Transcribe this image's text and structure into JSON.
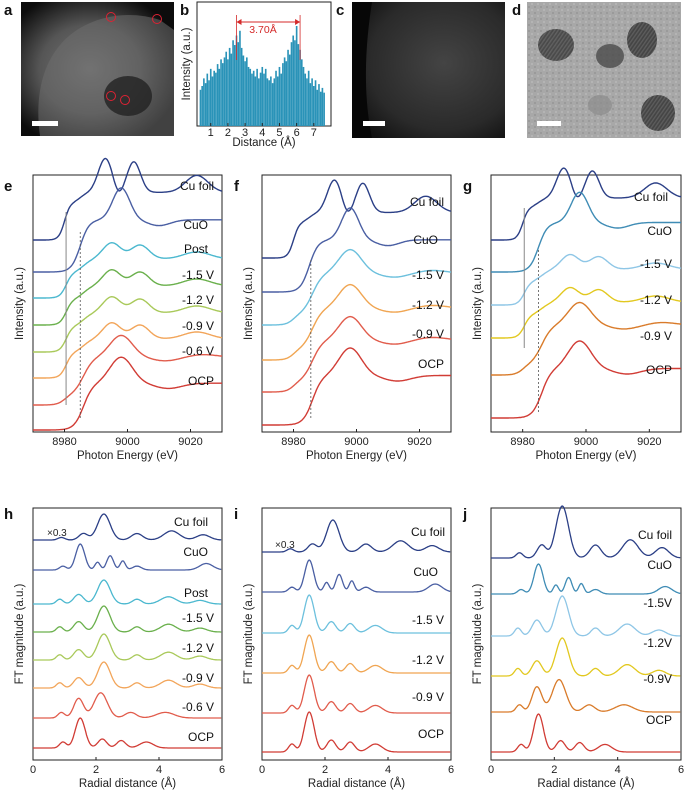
{
  "panels": {
    "a": {
      "letter": "a"
    },
    "b": {
      "letter": "b"
    },
    "c": {
      "letter": "c"
    },
    "d": {
      "letter": "d"
    },
    "e": {
      "letter": "e"
    },
    "f": {
      "letter": "f"
    },
    "g": {
      "letter": "g"
    },
    "h": {
      "letter": "h"
    },
    "i": {
      "letter": "i"
    },
    "j": {
      "letter": "j"
    }
  },
  "annotations": {
    "b_spacing": "3.70Å",
    "h_scale": "×0.3",
    "i_scale": "×0.3"
  },
  "colors": {
    "Cu foil": "#2b3f86",
    "CuO": "#4a5fa3",
    "Post": "#4bb8cf",
    "-1.5 V": "#6cc0dd",
    "-1.2 V": "#f0a552",
    "-0.9 V": "#f0a552",
    "-0.6 V": "#e15c4c",
    "OCP": "#d13c35",
    "h_-1.5 V": "#6ab04c",
    "h_-1.2 V": "#a9c95a",
    "h_-0.9 V": "#f2a55a",
    "g_-1.5 V": "#8ec6e6",
    "g_-1.2 V": "#e2c81f",
    "g_-0.9 V": "#d97b2a",
    "bar": "#2a93b8",
    "arrow": "#d42a2a"
  },
  "chart_data": [
    {
      "panel": "b",
      "type": "bar",
      "title": "",
      "xlabel": "Distance (Å)",
      "ylabel": "Intensity (a.u.)",
      "xlim": [
        0.2,
        8.0
      ],
      "xticks": [
        1,
        2,
        3,
        4,
        5,
        6,
        7
      ],
      "x": [
        0.4,
        0.5,
        0.6,
        0.7,
        0.8,
        0.9,
        1.0,
        1.1,
        1.2,
        1.3,
        1.4,
        1.5,
        1.6,
        1.7,
        1.8,
        1.9,
        2.0,
        2.1,
        2.2,
        2.3,
        2.4,
        2.5,
        2.6,
        2.7,
        2.8,
        2.9,
        3.0,
        3.1,
        3.2,
        3.3,
        3.4,
        3.5,
        3.6,
        3.7,
        3.8,
        3.9,
        4.0,
        4.1,
        4.2,
        4.3,
        4.4,
        4.5,
        4.6,
        4.7,
        4.8,
        4.9,
        5.0,
        5.1,
        5.2,
        5.3,
        5.4,
        5.5,
        5.6,
        5.7,
        5.8,
        5.9,
        6.0,
        6.1,
        6.2,
        6.3,
        6.4,
        6.5,
        6.6,
        6.7,
        6.8,
        6.9,
        7.0,
        7.1,
        7.2,
        7.3,
        7.4,
        7.5,
        7.6
      ],
      "values": [
        0.38,
        0.42,
        0.5,
        0.45,
        0.55,
        0.48,
        0.6,
        0.52,
        0.58,
        0.56,
        0.65,
        0.6,
        0.7,
        0.66,
        0.72,
        0.78,
        0.7,
        0.82,
        0.76,
        0.9,
        0.85,
        0.95,
        0.88,
        1.0,
        0.82,
        0.74,
        0.68,
        0.72,
        0.62,
        0.6,
        0.55,
        0.58,
        0.52,
        0.6,
        0.5,
        0.56,
        0.62,
        0.55,
        0.6,
        0.5,
        0.48,
        0.52,
        0.45,
        0.5,
        0.58,
        0.52,
        0.62,
        0.55,
        0.66,
        0.72,
        0.68,
        0.8,
        0.75,
        0.88,
        0.95,
        0.9,
        1.05,
        0.86,
        0.8,
        0.7,
        0.62,
        0.55,
        0.5,
        0.58,
        0.45,
        0.5,
        0.42,
        0.48,
        0.38,
        0.44,
        0.36,
        0.4,
        0.35
      ]
    },
    {
      "panel": "e",
      "type": "line",
      "xlabel": "Photon Energy (eV)",
      "ylabel": "Intensity (a.u.)",
      "xlim": [
        8970,
        9030
      ],
      "xticks": [
        8980,
        9000,
        9020
      ],
      "series": [
        {
          "name": "Cu foil",
          "label": "Cu foil"
        },
        {
          "name": "CuO",
          "label": "CuO"
        },
        {
          "name": "Post",
          "label": "Post"
        },
        {
          "name": "-1.5 V",
          "label": "-1.5 V"
        },
        {
          "name": "-1.2 V",
          "label": "-1.2 V"
        },
        {
          "name": "-0.9 V",
          "label": "-0.9 V"
        },
        {
          "name": "-0.6 V",
          "label": "-0.6 V"
        },
        {
          "name": "OCP",
          "label": "OCP"
        }
      ]
    },
    {
      "panel": "f",
      "type": "line",
      "xlabel": "Photon Energy (eV)",
      "ylabel": "Intensity (a.u.)",
      "xlim": [
        8970,
        9030
      ],
      "xticks": [
        8980,
        9000,
        9020
      ],
      "series": [
        {
          "name": "Cu foil",
          "label": "Cu foil"
        },
        {
          "name": "CuO",
          "label": "CuO"
        },
        {
          "name": "-1.5 V",
          "label": "-1.5 V"
        },
        {
          "name": "-1.2 V",
          "label": "-1.2 V"
        },
        {
          "name": "-0.9 V",
          "label": "-0.9 V"
        },
        {
          "name": "OCP",
          "label": "OCP"
        }
      ]
    },
    {
      "panel": "g",
      "type": "line",
      "xlabel": "Photon Energy (eV)",
      "ylabel": "Intensity (a.u.)",
      "xlim": [
        8970,
        9030
      ],
      "xticks": [
        8980,
        9000,
        9020
      ],
      "series": [
        {
          "name": "Cu foil",
          "label": "Cu foil"
        },
        {
          "name": "CuO",
          "label": "CuO"
        },
        {
          "name": "-1.5 V",
          "label": "-1.5 V"
        },
        {
          "name": "-1.2 V",
          "label": "-1.2 V"
        },
        {
          "name": "-0.9 V",
          "label": "-0.9 V"
        },
        {
          "name": "OCP",
          "label": "OCP"
        }
      ]
    },
    {
      "panel": "h",
      "type": "line",
      "xlabel": "Radial distance (Å)",
      "ylabel": "FT magnitude (a.u.)",
      "xlim": [
        0,
        6
      ],
      "xticks": [
        0,
        2,
        4,
        6
      ],
      "series": [
        {
          "name": "Cu foil",
          "label": "Cu foil"
        },
        {
          "name": "CuO",
          "label": "CuO"
        },
        {
          "name": "Post",
          "label": "Post"
        },
        {
          "name": "-1.5 V",
          "label": "-1.5 V"
        },
        {
          "name": "-1.2 V",
          "label": "-1.2 V"
        },
        {
          "name": "-0.9 V",
          "label": "-0.9 V"
        },
        {
          "name": "-0.6 V",
          "label": "-0.6 V"
        },
        {
          "name": "OCP",
          "label": "OCP"
        }
      ]
    },
    {
      "panel": "i",
      "type": "line",
      "xlabel": "Radial distance (Å)",
      "ylabel": "FT magnitude (a.u.)",
      "xlim": [
        0,
        6
      ],
      "xticks": [
        0,
        2,
        4,
        6
      ],
      "series": [
        {
          "name": "Cu foil",
          "label": "Cu foil"
        },
        {
          "name": "CuO",
          "label": "CuO"
        },
        {
          "name": "-1.5 V",
          "label": "-1.5 V"
        },
        {
          "name": "-1.2 V",
          "label": "-1.2 V"
        },
        {
          "name": "-0.9 V",
          "label": "-0.9 V"
        },
        {
          "name": "OCP",
          "label": "OCP"
        }
      ]
    },
    {
      "panel": "j",
      "type": "line",
      "xlabel": "Radial distance (Å)",
      "ylabel": "FT magnitude (a.u.)",
      "xlim": [
        0,
        6
      ],
      "xticks": [
        0,
        2,
        4,
        6
      ],
      "series": [
        {
          "name": "Cu foil",
          "label": "Cu foil"
        },
        {
          "name": "CuO",
          "label": "CuO"
        },
        {
          "name": "-1.5V",
          "label": "-1.5V"
        },
        {
          "name": "-1.2V",
          "label": "-1.2V"
        },
        {
          "name": "-0.9V",
          "label": "-0.9V"
        },
        {
          "name": "OCP",
          "label": "OCP"
        }
      ]
    }
  ]
}
